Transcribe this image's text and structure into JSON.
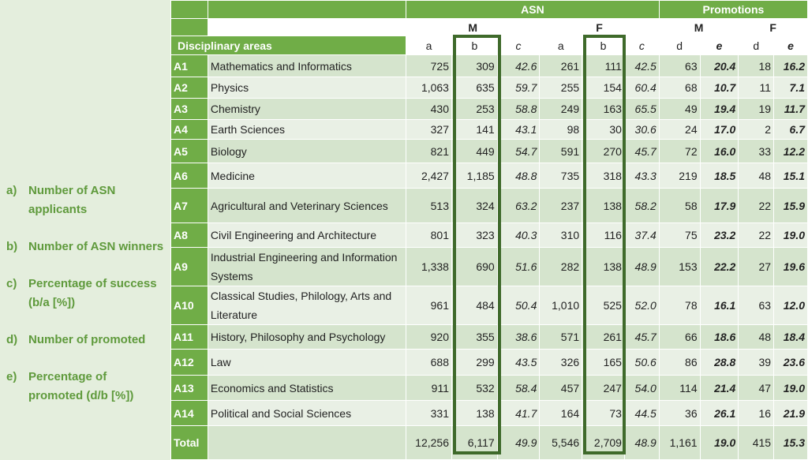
{
  "header": {
    "asn": "ASN",
    "promotions": "Promotions",
    "m": "M",
    "f": "F",
    "disciplinary_areas": "Disciplinary areas",
    "cols_asn": [
      "a",
      "b",
      "c",
      "a",
      "b",
      "c"
    ],
    "cols_prom": [
      "d",
      "e",
      "d",
      "e"
    ]
  },
  "legend": [
    {
      "letter": "a)",
      "text": "Number of ASN applicants"
    },
    {
      "letter": "b)",
      "text": "Number of ASN winners"
    },
    {
      "letter": "c)",
      "text": "Percentage of success (b/a [%])"
    },
    {
      "letter": "d)",
      "text": "Number of promoted"
    },
    {
      "letter": "e)",
      "text": "Percentage of promoted (d/b [%])"
    }
  ],
  "rows": [
    {
      "code": "A1",
      "name": "Mathematics and Informatics",
      "v": [
        "725",
        "309",
        "42.6",
        "261",
        "111",
        "42.5",
        "63",
        "20.4",
        "18",
        "16.2"
      ]
    },
    {
      "code": "A2",
      "name": "Physics",
      "v": [
        "1,063",
        "635",
        "59.7",
        "255",
        "154",
        "60.4",
        "68",
        "10.7",
        "11",
        "7.1"
      ]
    },
    {
      "code": "A3",
      "name": "Chemistry",
      "v": [
        "430",
        "253",
        "58.8",
        "249",
        "163",
        "65.5",
        "49",
        "19.4",
        "19",
        "11.7"
      ]
    },
    {
      "code": "A4",
      "name": "Earth Sciences",
      "v": [
        "327",
        "141",
        "43.1",
        "98",
        "30",
        "30.6",
        "24",
        "17.0",
        "2",
        "6.7"
      ]
    },
    {
      "code": "A5",
      "name": "Biology",
      "v": [
        "821",
        "449",
        "54.7",
        "591",
        "270",
        "45.7",
        "72",
        "16.0",
        "33",
        "12.2"
      ]
    },
    {
      "code": "A6",
      "name": "Medicine",
      "v": [
        "2,427",
        "1,185",
        "48.8",
        "735",
        "318",
        "43.3",
        "219",
        "18.5",
        "48",
        "15.1"
      ]
    },
    {
      "code": "A7",
      "name": "Agricultural and Veterinary Sciences",
      "v": [
        "513",
        "324",
        "63.2",
        "237",
        "138",
        "58.2",
        "58",
        "17.9",
        "22",
        "15.9"
      ]
    },
    {
      "code": "A8",
      "name": "Civil Engineering and Architecture",
      "v": [
        "801",
        "323",
        "40.3",
        "310",
        "116",
        "37.4",
        "75",
        "23.2",
        "22",
        "19.0"
      ]
    },
    {
      "code": "A9",
      "name": "Industrial Engineering and Information Systems",
      "v": [
        "1,338",
        "690",
        "51.6",
        "282",
        "138",
        "48.9",
        "153",
        "22.2",
        "27",
        "19.6"
      ]
    },
    {
      "code": "A10",
      "name": "Classical Studies, Philology, Arts and Literature",
      "v": [
        "961",
        "484",
        "50.4",
        "1,010",
        "525",
        "52.0",
        "78",
        "16.1",
        "63",
        "12.0"
      ]
    },
    {
      "code": "A11",
      "name": "History, Philosophy and Psychology",
      "v": [
        "920",
        "355",
        "38.6",
        "571",
        "261",
        "45.7",
        "66",
        "18.6",
        "48",
        "18.4"
      ]
    },
    {
      "code": "A12",
      "name": "Law",
      "v": [
        "688",
        "299",
        "43.5",
        "326",
        "165",
        "50.6",
        "86",
        "28.8",
        "39",
        "23.6"
      ]
    },
    {
      "code": "A13",
      "name": "Economics and Statistics",
      "v": [
        "911",
        "532",
        "58.4",
        "457",
        "247",
        "54.0",
        "114",
        "21.4",
        "47",
        "19.0"
      ]
    },
    {
      "code": "A14",
      "name": "Political and Social Sciences",
      "v": [
        "331",
        "138",
        "41.7",
        "164",
        "73",
        "44.5",
        "36",
        "26.1",
        "16",
        "21.9"
      ]
    },
    {
      "code": "Total",
      "name": "",
      "v": [
        "12,256",
        "6,117",
        "49.9",
        "5,546",
        "2,709",
        "48.9",
        "1,161",
        "19.0",
        "415",
        "15.3"
      ]
    }
  ]
}
